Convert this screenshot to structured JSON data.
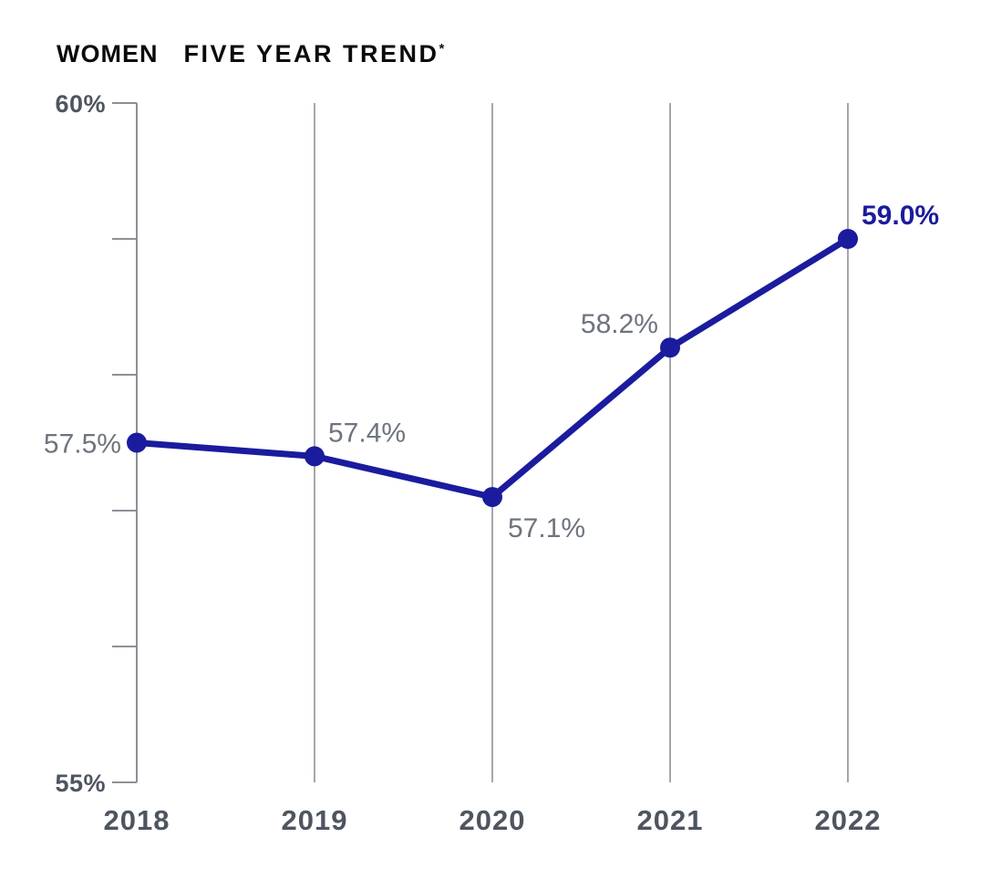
{
  "header": {
    "kicker": "WOMEN",
    "title": "FIVE YEAR TREND",
    "footnote_marker": "*"
  },
  "chart_data": {
    "type": "line",
    "title": "WOMEN FIVE YEAR TREND*",
    "categories": [
      "2018",
      "2019",
      "2020",
      "2021",
      "2022"
    ],
    "series": [
      {
        "name": "Women",
        "values": [
          57.5,
          57.4,
          57.1,
          58.2,
          59.0
        ]
      }
    ],
    "point_labels": [
      "57.5%",
      "57.4%",
      "57.1%",
      "58.2%",
      "59.0%"
    ],
    "point_label_positions": [
      "left",
      "above-right",
      "below-right",
      "above-left",
      "above-right"
    ],
    "point_label_emphasis": [
      false,
      false,
      false,
      false,
      true
    ],
    "xlabel": "",
    "ylabel": "",
    "ylim": [
      55,
      60
    ],
    "yticks": [
      60,
      59,
      58,
      57,
      56,
      55
    ],
    "ytick_labels": {
      "60": "60%",
      "55": "55%"
    },
    "grid": "vertical-only",
    "legend": "none",
    "colors": {
      "line": "#1B1B9E",
      "point": "#1B1B9E",
      "grid": "#8C9097",
      "axis_text": "#4E5560",
      "point_label_text": "#6E747E",
      "emphasis_label_text": "#1B1B9E",
      "title_text": "#0b0b0c"
    }
  }
}
